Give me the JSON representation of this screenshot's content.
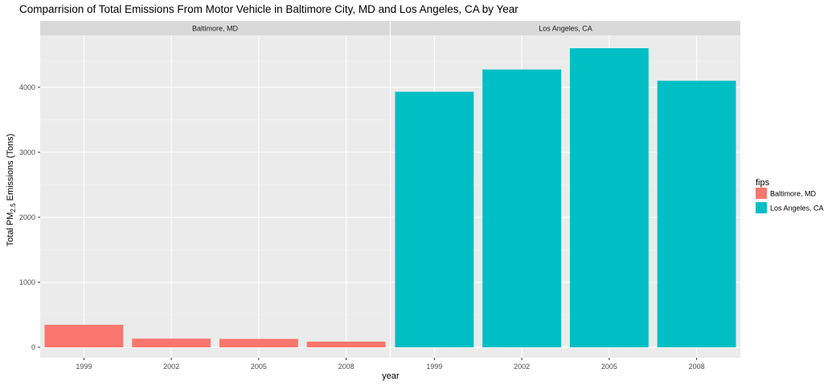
{
  "chart_data": {
    "type": "bar",
    "title": "Comparrision of Total Emissions From Motor Vehicle in Baltimore City, MD and Los Angeles, CA by Year",
    "xlabel": "year",
    "ylabel": "Total PM",
    "ylabel_subscript": "2.5",
    "ylabel_rest": " Emissions (Tons)",
    "categories": [
      "1999",
      "2002",
      "2005",
      "2008"
    ],
    "y_ticks": [
      0,
      1000,
      2000,
      3000,
      4000
    ],
    "ylim": [
      -160,
      4800
    ],
    "grid": true,
    "legend": {
      "title": "fips",
      "position": "right",
      "entries": [
        {
          "label": "Baltimore, MD",
          "color": "#F8766D"
        },
        {
          "label": "Los Angeles, CA",
          "color": "#00BFC4"
        }
      ]
    },
    "facets": [
      {
        "name": "Baltimore, MD",
        "color": "#F8766D",
        "values": [
          347,
          134,
          130,
          88
        ]
      },
      {
        "name": "Los Angeles, CA",
        "color": "#00BFC4",
        "values": [
          3931,
          4274,
          4601,
          4101
        ]
      }
    ]
  }
}
